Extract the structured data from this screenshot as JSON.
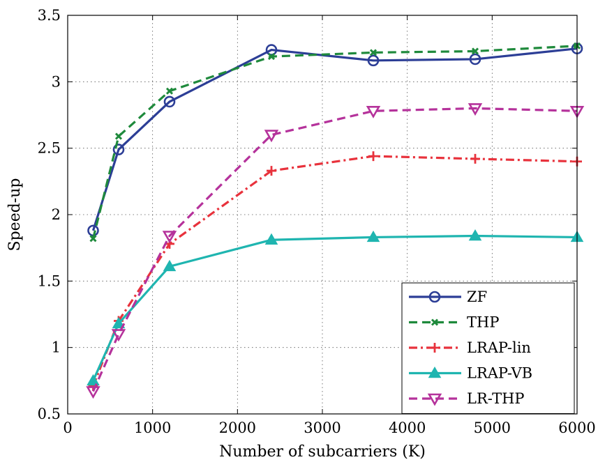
{
  "chart_data": {
    "type": "line",
    "xlabel": "Number of subcarriers (K)",
    "ylabel": "Speed-up",
    "xlim": [
      0,
      6000
    ],
    "ylim": [
      0.5,
      3.5
    ],
    "xticks": [
      0,
      1000,
      2000,
      3000,
      4000,
      5000,
      6000
    ],
    "xtick_labels": [
      "0",
      "1000",
      "2000",
      "3000",
      "4000",
      "5000",
      "6000"
    ],
    "yticks": [
      0.5,
      1,
      1.5,
      2,
      2.5,
      3,
      3.5
    ],
    "ytick_labels": [
      "0.5",
      "1",
      "1.5",
      "2",
      "2.5",
      "3",
      "3.5"
    ],
    "grid": true,
    "grid_style": "dotted",
    "legend_position": "bottom-right",
    "x": [
      300,
      600,
      1200,
      2400,
      3600,
      4800,
      6000
    ],
    "series": [
      {
        "name": "ZF",
        "values": [
          1.88,
          2.49,
          2.85,
          3.24,
          3.16,
          3.17,
          3.25
        ],
        "color": "#2c3e96",
        "dash": "solid",
        "marker": "circle"
      },
      {
        "name": "THP",
        "values": [
          1.82,
          2.59,
          2.93,
          3.19,
          3.22,
          3.23,
          3.27
        ],
        "color": "#1f8a3c",
        "dash": "dashed",
        "marker": "x"
      },
      {
        "name": "LRAP-lin",
        "values": [
          0.71,
          1.2,
          1.78,
          2.33,
          2.44,
          2.42,
          2.4
        ],
        "color": "#e8323c",
        "dash": "dashdot",
        "marker": "plus"
      },
      {
        "name": "LRAP-VB",
        "values": [
          0.75,
          1.18,
          1.61,
          1.81,
          1.83,
          1.84,
          1.83
        ],
        "color": "#1fb5b0",
        "dash": "solid",
        "marker": "triangle-up"
      },
      {
        "name": "LR-THP",
        "values": [
          0.67,
          1.1,
          1.84,
          2.6,
          2.78,
          2.8,
          2.78
        ],
        "color": "#b5329b",
        "dash": "dashed",
        "marker": "triangle-down"
      }
    ]
  }
}
